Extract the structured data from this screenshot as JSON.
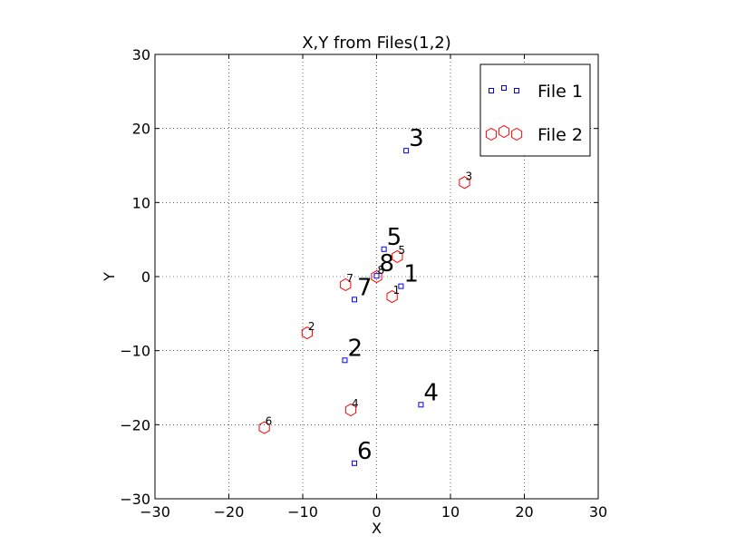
{
  "chart_data": {
    "type": "scatter",
    "title": "X,Y from Files(1,2)",
    "xlabel": "X",
    "ylabel": "Y",
    "xlim": [
      -30,
      30
    ],
    "ylim": [
      -30,
      30
    ],
    "xticks": [
      -30,
      -20,
      -10,
      0,
      10,
      20,
      30
    ],
    "yticks": [
      -30,
      -20,
      -10,
      0,
      10,
      20,
      30
    ],
    "xtick_labels": [
      "−30",
      "−20",
      "−10",
      "0",
      "10",
      "20",
      "30"
    ],
    "ytick_labels": [
      "−30",
      "−20",
      "−10",
      "0",
      "10",
      "20",
      "30"
    ],
    "grid": true,
    "legend_position": "top-right",
    "series": [
      {
        "name": "File 1",
        "marker": "square",
        "color": "#0000ff",
        "points": [
          {
            "x": 3.3,
            "y": -1.3,
            "label": "1"
          },
          {
            "x": -4.3,
            "y": -11.3,
            "label": "2"
          },
          {
            "x": 4.0,
            "y": 17.0,
            "label": "3"
          },
          {
            "x": 6.0,
            "y": -17.3,
            "label": "4"
          },
          {
            "x": 1.0,
            "y": 3.7,
            "label": "5"
          },
          {
            "x": -3.0,
            "y": -25.2,
            "label": "6"
          },
          {
            "x": -3.0,
            "y": -3.1,
            "label": "7"
          },
          {
            "x": 0.0,
            "y": 0.1,
            "label": "8"
          }
        ]
      },
      {
        "name": "File 2",
        "marker": "hexagon",
        "color": "#ff0000",
        "points": [
          {
            "x": 2.1,
            "y": -2.7,
            "label": "1"
          },
          {
            "x": -9.4,
            "y": -7.6,
            "label": "2"
          },
          {
            "x": 11.9,
            "y": 12.7,
            "label": "3"
          },
          {
            "x": -3.5,
            "y": -18.0,
            "label": "4"
          },
          {
            "x": 2.8,
            "y": 2.7,
            "label": "5"
          },
          {
            "x": -15.2,
            "y": -20.4,
            "label": "6"
          },
          {
            "x": -4.2,
            "y": -1.1,
            "label": "7"
          },
          {
            "x": 0.0,
            "y": 0.0,
            "label": "8"
          }
        ]
      }
    ]
  }
}
